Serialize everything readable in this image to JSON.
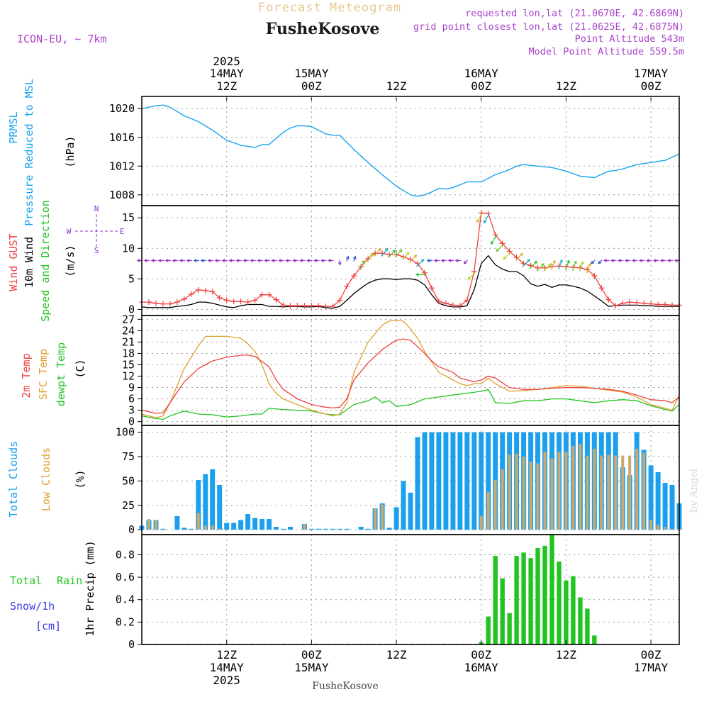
{
  "header": {
    "title": "Forecast Meteogram",
    "location": "FusheKosove",
    "model": "ICON-EU, ~ 7km",
    "requested": "requested lon,lat (21.0670E, 42.6869N)",
    "gridpoint": "grid point closest lon,lat (21.0625E, 42.6875N)",
    "altitude": "Point Altitude 543m",
    "model_altitude": "Model Point Altitude 559.5m",
    "footer_location": "FusheKosove",
    "watermark": "by Angel"
  },
  "colors": {
    "pressure": "#1aa3f0",
    "gust": "#f04040",
    "wind": "#000000",
    "wind_dir": "#22c422",
    "temp": "#f04040",
    "sfc_temp": "#e0a030",
    "dewpt": "#22c422",
    "total_clouds": "#1ca0ee",
    "low_clouds": "#c8aa70",
    "rain": "#22c422",
    "snow": "#3a3ae6",
    "arrows_calm": "#9933cc",
    "title": "#e8c890",
    "info": "#aa44cc"
  },
  "time_axis": {
    "top": [
      {
        "hour": 12,
        "line1": "2025",
        "line2": "14MAY",
        "line3": "12Z"
      },
      {
        "hour": 24,
        "line1": "",
        "line2": "15MAY",
        "line3": "00Z"
      },
      {
        "hour": 36,
        "line1": "",
        "line2": "",
        "line3": "12Z"
      },
      {
        "hour": 48,
        "line1": "",
        "line2": "16MAY",
        "line3": "00Z"
      },
      {
        "hour": 60,
        "line1": "",
        "line2": "",
        "line3": "12Z"
      },
      {
        "hour": 72,
        "line1": "",
        "line2": "17MAY",
        "line3": "00Z"
      }
    ],
    "bottom": [
      {
        "hour": 12,
        "line1": "12Z",
        "line2": "14MAY",
        "line3": "2025"
      },
      {
        "hour": 24,
        "line1": "00Z",
        "line2": "15MAY",
        "line3": ""
      },
      {
        "hour": 36,
        "line1": "12Z",
        "line2": "",
        "line3": ""
      },
      {
        "hour": 48,
        "line1": "00Z",
        "line2": "16MAY",
        "line3": ""
      },
      {
        "hour": 60,
        "line1": "12Z",
        "line2": "",
        "line3": ""
      },
      {
        "hour": 72,
        "line1": "00Z",
        "line2": "17MAY",
        "line3": ""
      }
    ]
  },
  "panel_labels": {
    "pressure": {
      "name1": "PRMSL",
      "name2": "Pressure Reduced to MSL",
      "unit": "(hPa)"
    },
    "wind": {
      "gust": "Wind GUST",
      "wind": "10m Wind",
      "dir": "Speed and Direction",
      "unit": "(m/s)",
      "compass_n": "N",
      "compass_s": "S",
      "compass_w": "W",
      "compass_e": "E"
    },
    "temp": {
      "t2m": "2m Temp",
      "sfc": "SFC Temp",
      "dew": "dewpt Temp",
      "unit": "(C)"
    },
    "clouds": {
      "total": "Total Clouds",
      "low": "Low Clouds",
      "unit": "(%)"
    },
    "precip": {
      "rain1": "Total",
      "rain2": "Rain",
      "snow": "Snow/1h",
      "snow_unit": "[cm]",
      "name": "1hr Precip (mm)"
    }
  },
  "chart_data": [
    {
      "type": "line",
      "title": "PRMSL Pressure Reduced to MSL",
      "ylabel": "(hPa)",
      "xlim": [
        0,
        76
      ],
      "ylim": [
        1006.5,
        1021.7
      ],
      "yticks": [
        1008,
        1012,
        1016,
        1020
      ],
      "series": [
        {
          "name": "PRMSL",
          "x": [
            0,
            2,
            3,
            4,
            6,
            8,
            10,
            12,
            14,
            16,
            17,
            18,
            20,
            21,
            22,
            23,
            24,
            26,
            27,
            28,
            30,
            32,
            34,
            36,
            38,
            39,
            40,
            41,
            42,
            43,
            44,
            46,
            48,
            50,
            52,
            53,
            54,
            56,
            58,
            60,
            62,
            64,
            66,
            67,
            68,
            70,
            72,
            74,
            76
          ],
          "y": [
            1020,
            1020.4,
            1020.5,
            1020.2,
            1019,
            1018.2,
            1017,
            1015.6,
            1014.9,
            1014.6,
            1015,
            1015,
            1016.7,
            1017.3,
            1017.6,
            1017.6,
            1017.5,
            1016.5,
            1016.3,
            1016.3,
            1014.3,
            1012.5,
            1010.8,
            1009.2,
            1008.0,
            1007.8,
            1008.0,
            1008.4,
            1008.9,
            1008.8,
            1009.0,
            1009.8,
            1009.8,
            1010.8,
            1011.5,
            1012.0,
            1012.2,
            1012.0,
            1011.8,
            1011.3,
            1010.6,
            1010.4,
            1011.3,
            1011.4,
            1011.6,
            1012.2,
            1012.5,
            1012.8,
            1013.7
          ]
        }
      ]
    },
    {
      "type": "line",
      "title": "Wind GUST / 10m Wind Speed and Direction",
      "ylabel": "(m/s)",
      "xlim": [
        0,
        76
      ],
      "ylim": [
        -1,
        17
      ],
      "yticks": [
        0,
        5,
        10,
        15
      ],
      "series": [
        {
          "name": "Wind GUST",
          "values": [
            1.2,
            1.2,
            1.0,
            0.9,
            0.9,
            1.2,
            1.7,
            2.5,
            3.2,
            3.1,
            2.9,
            1.9,
            1.5,
            1.3,
            1.3,
            1.2,
            1.5,
            2.4,
            2.4,
            1.6,
            0.7,
            0.6,
            0.6,
            0.6,
            0.6,
            0.6,
            0.5,
            0.5,
            1.5,
            3.8,
            5.5,
            7.0,
            8.3,
            9.2,
            9.2,
            9.0,
            9.0,
            8.6,
            8.2,
            7.5,
            6.0,
            3.5,
            1.3,
            1.0,
            0.7,
            0.6,
            1.5,
            6.2,
            15.8,
            15.7,
            12.2,
            10.8,
            9.5,
            8.5,
            7.5,
            7.2,
            6.8,
            6.8,
            7.0,
            7.1,
            7.0,
            6.9,
            6.8,
            6.5,
            5.5,
            3.5,
            1.6,
            0.6,
            1.0,
            1.2,
            1.1,
            1.0,
            0.9,
            0.8,
            0.8,
            0.7,
            0.7
          ]
        },
        {
          "name": "10m Wind",
          "values": [
            0.4,
            0.3,
            0.3,
            0.3,
            0.3,
            0.5,
            0.6,
            0.8,
            1.2,
            1.2,
            1.0,
            0.7,
            0.4,
            0.3,
            0.6,
            0.8,
            0.8,
            0.8,
            0.5,
            0.5,
            0.4,
            0.5,
            0.5,
            0.4,
            0.4,
            0.5,
            0.3,
            0.2,
            0.5,
            1.5,
            2.6,
            3.5,
            4.3,
            4.8,
            5.0,
            5.0,
            4.9,
            5.0,
            5.0,
            4.8,
            4.0,
            2.4,
            1.0,
            0.6,
            0.4,
            0.4,
            0.6,
            3.2,
            7.5,
            8.8,
            7.3,
            6.6,
            6.2,
            6.2,
            5.5,
            4.2,
            3.8,
            4.1,
            3.6,
            4.0,
            4.0,
            3.8,
            3.5,
            3.0,
            2.2,
            1.4,
            0.5,
            0.6,
            0.7,
            0.7,
            0.7,
            0.6,
            0.6,
            0.5,
            0.5,
            0.5,
            0.5
          ]
        },
        {
          "name": "Wind direction (deg, from)",
          "values": [
            90,
            90,
            90,
            90,
            90,
            90,
            90,
            90,
            90,
            90,
            90,
            90,
            90,
            90,
            90,
            90,
            90,
            90,
            90,
            90,
            90,
            90,
            90,
            90,
            90,
            90,
            90,
            90,
            0,
            200,
            200,
            200,
            210,
            220,
            220,
            225,
            220,
            220,
            225,
            225,
            90,
            90,
            90,
            90,
            90,
            90,
            45,
            45,
            30,
            30,
            30,
            45,
            45,
            225,
            225,
            225,
            225,
            225,
            200,
            200,
            200,
            200,
            200,
            200,
            45,
            45,
            90,
            90,
            90,
            90,
            90,
            90,
            90,
            90,
            90,
            90,
            90
          ]
        }
      ]
    },
    {
      "type": "line",
      "title": "2m Temp / SFC Temp / dewpt Temp",
      "ylabel": "(C)",
      "xlim": [
        0,
        76
      ],
      "ylim": [
        -1,
        28
      ],
      "yticks": [
        0,
        3,
        6,
        9,
        12,
        15,
        18,
        21,
        24,
        27
      ],
      "series": [
        {
          "name": "2m Temp",
          "x": [
            0,
            2,
            3,
            4,
            6,
            8,
            9,
            10,
            12,
            14,
            15,
            16,
            18,
            19,
            20,
            22,
            24,
            26,
            27,
            28,
            29,
            30,
            32,
            34,
            36,
            37,
            38,
            40,
            41,
            42,
            44,
            45,
            46,
            47,
            48,
            49,
            50,
            52,
            54,
            56,
            58,
            60,
            62,
            64,
            66,
            68,
            70,
            72,
            74,
            75,
            76
          ],
          "y": [
            3.0,
            2.2,
            2.3,
            5.0,
            10.5,
            14.0,
            15.0,
            16.0,
            17.0,
            17.5,
            17.6,
            17.2,
            14.5,
            11.0,
            8.5,
            6.0,
            4.5,
            3.8,
            3.6,
            3.8,
            6.0,
            11.0,
            15.5,
            19.0,
            21.5,
            21.8,
            21.5,
            18.0,
            16.0,
            14.5,
            13.0,
            11.5,
            11.0,
            10.5,
            11.0,
            12.0,
            11.5,
            9.0,
            8.5,
            8.5,
            8.8,
            9.0,
            9.0,
            8.8,
            8.5,
            8.0,
            7.0,
            5.8,
            5.5,
            5.0,
            6.5
          ]
        },
        {
          "name": "SFC Temp",
          "x": [
            0,
            2,
            3,
            4,
            6,
            8,
            9,
            10,
            12,
            14,
            15,
            16,
            17,
            18,
            19,
            20,
            22,
            24,
            26,
            27,
            28,
            29,
            30,
            32,
            34,
            35,
            36,
            37,
            38,
            39,
            40,
            42,
            44,
            45,
            46,
            47,
            48,
            49,
            50,
            52,
            54,
            56,
            58,
            60,
            62,
            64,
            66,
            68,
            70,
            72,
            74,
            75,
            76
          ],
          "y": [
            2.0,
            1.0,
            1.5,
            5.0,
            14.0,
            20.0,
            22.5,
            22.5,
            22.5,
            22.0,
            20.5,
            18.5,
            15.0,
            10.0,
            7.5,
            6.0,
            4.5,
            3.0,
            2.0,
            1.5,
            2.0,
            5.0,
            13.0,
            21.0,
            25.5,
            26.5,
            26.8,
            26.5,
            24.5,
            22.0,
            18.5,
            13.0,
            11.0,
            10.0,
            9.5,
            10.0,
            10.0,
            11.5,
            10.0,
            8.0,
            8.2,
            8.5,
            9.0,
            9.5,
            9.3,
            8.8,
            8.3,
            7.8,
            6.5,
            4.5,
            3.5,
            3.0,
            7.0
          ]
        },
        {
          "name": "dewpt Temp",
          "x": [
            0,
            2,
            3,
            4,
            6,
            8,
            10,
            12,
            14,
            16,
            17,
            18,
            20,
            22,
            24,
            26,
            27,
            28,
            30,
            32,
            33,
            34,
            35,
            36,
            38,
            40,
            42,
            44,
            46,
            48,
            49,
            50,
            52,
            54,
            56,
            58,
            60,
            62,
            64,
            66,
            68,
            70,
            72,
            74,
            75,
            76
          ],
          "y": [
            1.5,
            0.8,
            0.6,
            1.5,
            2.8,
            2.0,
            1.8,
            1.2,
            1.5,
            2.0,
            2.0,
            3.5,
            3.2,
            3.0,
            2.8,
            2.0,
            1.8,
            1.8,
            4.5,
            5.5,
            6.5,
            5.0,
            5.5,
            4.0,
            4.5,
            6.0,
            6.5,
            7.0,
            7.5,
            8.0,
            8.5,
            5.0,
            4.8,
            5.5,
            5.5,
            6.0,
            6.0,
            5.5,
            5.0,
            5.5,
            5.8,
            5.5,
            4.2,
            3.2,
            2.8,
            4.5
          ]
        }
      ]
    },
    {
      "type": "bar",
      "title": "Total Clouds / Low Clouds",
      "ylabel": "(%)",
      "xlim": [
        0,
        76
      ],
      "ylim": [
        -5,
        107
      ],
      "yticks": [
        0,
        25,
        50,
        75,
        100
      ],
      "series": [
        {
          "name": "Total Clouds",
          "values": [
            4,
            10,
            10,
            1,
            0,
            14,
            2,
            1,
            51,
            57,
            62,
            46,
            7,
            7,
            10,
            16,
            12,
            11,
            11,
            3,
            1,
            3,
            0,
            6,
            1,
            1,
            1,
            1,
            1,
            1,
            0,
            3,
            1,
            22,
            27,
            2,
            23,
            50,
            38,
            95,
            100,
            100,
            100,
            100,
            100,
            100,
            100,
            100,
            100,
            100,
            100,
            100,
            100,
            100,
            100,
            100,
            100,
            100,
            100,
            100,
            100,
            100,
            100,
            100,
            100,
            100,
            100,
            100,
            64,
            56,
            100,
            82,
            66,
            59,
            48,
            46,
            27
          ]
        },
        {
          "name": "Low Clouds",
          "values": [
            0,
            11,
            10,
            0,
            0,
            0,
            0,
            0,
            17,
            4,
            4,
            1,
            0,
            0,
            0,
            0,
            0,
            0,
            0,
            0,
            0,
            0,
            0,
            6,
            0,
            0,
            0,
            0,
            0,
            0,
            0,
            0,
            0,
            22,
            26,
            0,
            0,
            0,
            0,
            0,
            0,
            0,
            0,
            0,
            0,
            0,
            0,
            0,
            14,
            39,
            51,
            62,
            77,
            78,
            75,
            70,
            68,
            80,
            73,
            80,
            80,
            86,
            88,
            76,
            83,
            76,
            77,
            76,
            76,
            76,
            83,
            79,
            10,
            5,
            3,
            1,
            1
          ]
        }
      ]
    },
    {
      "type": "bar",
      "title": "1hr Precip (mm)",
      "ylabel": "1hr Precip (mm)",
      "xlim": [
        0,
        76
      ],
      "ylim": [
        0,
        0.98
      ],
      "yticks": [
        0,
        0.2,
        0.4,
        0.6,
        0.8
      ],
      "series": [
        {
          "name": "Total Rain",
          "x": [
            48,
            49,
            50,
            51,
            52,
            53,
            54,
            55,
            56,
            57,
            58,
            59,
            60,
            61,
            62,
            63,
            64
          ],
          "values": [
            0.02,
            0.25,
            0.79,
            0.59,
            0.28,
            0.79,
            0.82,
            0.77,
            0.86,
            0.88,
            0.98,
            0.74,
            0.57,
            0.61,
            0.42,
            0.32,
            0.08
          ]
        },
        {
          "name": "Snow/1h",
          "x": [],
          "values": []
        }
      ]
    }
  ]
}
